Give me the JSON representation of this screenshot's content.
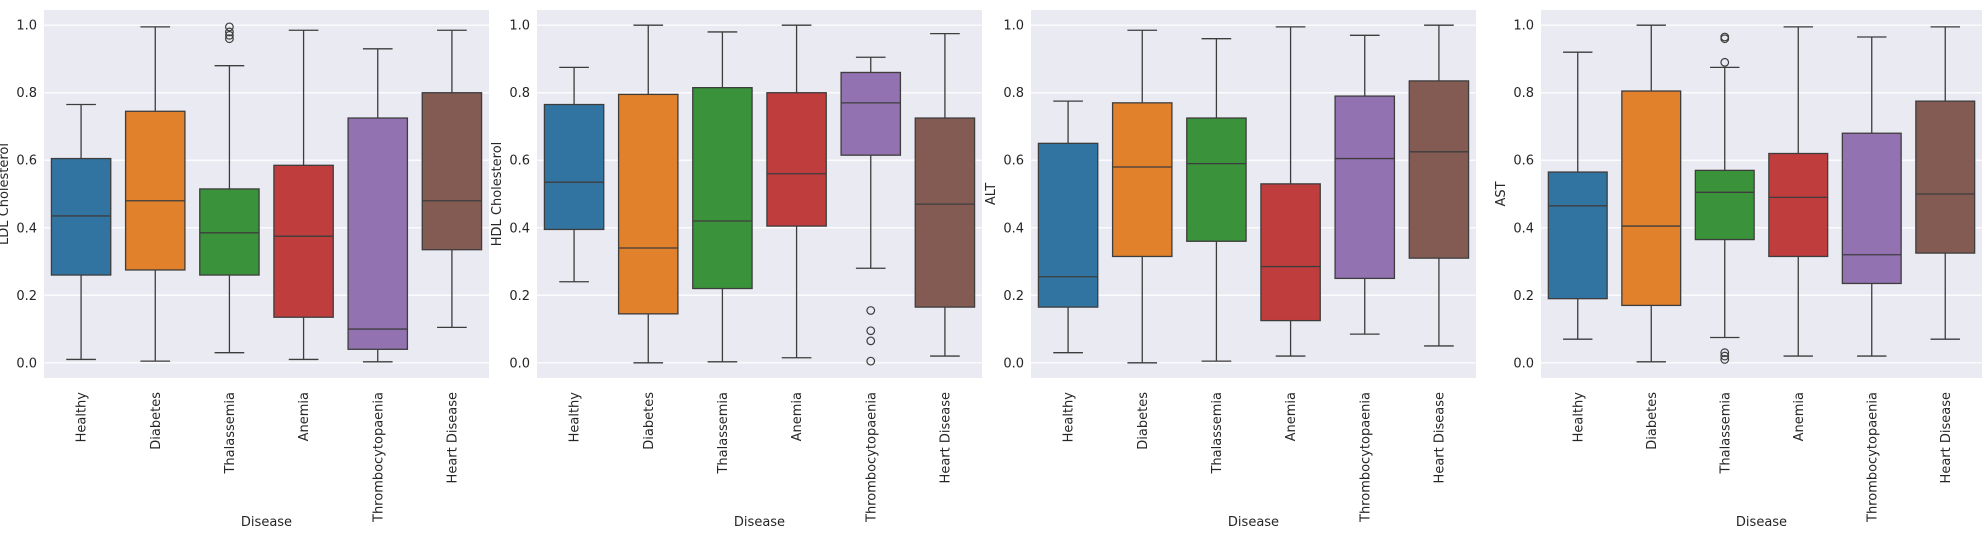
{
  "colors": {
    "plot_background": "#eaeaf2",
    "grid": "#ffffff",
    "outline": "#3d3d3d",
    "text": "#262626"
  },
  "chart_data": [
    {
      "type": "box",
      "xlabel": "Disease",
      "ylabel": "LDL Cholesterol",
      "ylim": [
        -0.045,
        1.045
      ],
      "yticks": [
        0.0,
        0.2,
        0.4,
        0.6,
        0.8,
        1.0
      ],
      "ytick_labels": [
        "0.0",
        "0.2",
        "0.4",
        "0.6",
        "0.8",
        "1.0"
      ],
      "grid": true,
      "categories": [
        "Healthy",
        "Diabetes",
        "Thalassemia",
        "Anemia",
        "Thrombocytopaenia",
        "Heart Disease"
      ],
      "category_colors": [
        "#3274a1",
        "#e1812c",
        "#3a923a",
        "#c03d3e",
        "#9372b2",
        "#845b53"
      ],
      "boxes": [
        {
          "whisker_low": 0.01,
          "q1": 0.26,
          "median": 0.435,
          "q3": 0.605,
          "whisker_high": 0.765,
          "outliers": []
        },
        {
          "whisker_low": 0.005,
          "q1": 0.275,
          "median": 0.48,
          "q3": 0.745,
          "whisker_high": 0.995,
          "outliers": []
        },
        {
          "whisker_low": 0.03,
          "q1": 0.26,
          "median": 0.385,
          "q3": 0.515,
          "whisker_high": 0.88,
          "outliers": [
            0.96,
            0.97,
            0.98,
            0.995
          ]
        },
        {
          "whisker_low": 0.01,
          "q1": 0.135,
          "median": 0.375,
          "q3": 0.585,
          "whisker_high": 0.985,
          "outliers": []
        },
        {
          "whisker_low": 0.003,
          "q1": 0.04,
          "median": 0.1,
          "q3": 0.725,
          "whisker_high": 0.93,
          "outliers": []
        },
        {
          "whisker_low": 0.105,
          "q1": 0.335,
          "median": 0.48,
          "q3": 0.8,
          "whisker_high": 0.985,
          "outliers": []
        }
      ]
    },
    {
      "type": "box",
      "xlabel": "Disease",
      "ylabel": "HDL Cholesterol",
      "ylim": [
        -0.045,
        1.045
      ],
      "yticks": [
        0.0,
        0.2,
        0.4,
        0.6,
        0.8,
        1.0
      ],
      "ytick_labels": [
        "0.0",
        "0.2",
        "0.4",
        "0.6",
        "0.8",
        "1.0"
      ],
      "grid": true,
      "categories": [
        "Healthy",
        "Diabetes",
        "Thalassemia",
        "Anemia",
        "Thrombocytopaenia",
        "Heart Disease"
      ],
      "category_colors": [
        "#3274a1",
        "#e1812c",
        "#3a923a",
        "#c03d3e",
        "#9372b2",
        "#845b53"
      ],
      "boxes": [
        {
          "whisker_low": 0.24,
          "q1": 0.395,
          "median": 0.535,
          "q3": 0.765,
          "whisker_high": 0.875,
          "outliers": []
        },
        {
          "whisker_low": 0.0,
          "q1": 0.145,
          "median": 0.34,
          "q3": 0.795,
          "whisker_high": 1.0,
          "outliers": []
        },
        {
          "whisker_low": 0.003,
          "q1": 0.22,
          "median": 0.42,
          "q3": 0.815,
          "whisker_high": 0.98,
          "outliers": []
        },
        {
          "whisker_low": 0.015,
          "q1": 0.405,
          "median": 0.56,
          "q3": 0.8,
          "whisker_high": 1.0,
          "outliers": []
        },
        {
          "whisker_low": 0.28,
          "q1": 0.615,
          "median": 0.77,
          "q3": 0.86,
          "whisker_high": 0.905,
          "outliers": [
            0.155,
            0.095,
            0.065,
            0.005
          ]
        },
        {
          "whisker_low": 0.02,
          "q1": 0.165,
          "median": 0.47,
          "q3": 0.725,
          "whisker_high": 0.975,
          "outliers": []
        }
      ]
    },
    {
      "type": "box",
      "xlabel": "Disease",
      "ylabel": "ALT",
      "ylim": [
        -0.045,
        1.045
      ],
      "yticks": [
        0.0,
        0.2,
        0.4,
        0.6,
        0.8,
        1.0
      ],
      "ytick_labels": [
        "0.0",
        "0.2",
        "0.4",
        "0.6",
        "0.8",
        "1.0"
      ],
      "grid": true,
      "categories": [
        "Healthy",
        "Diabetes",
        "Thalassemia",
        "Anemia",
        "Thrombocytopaenia",
        "Heart Disease"
      ],
      "category_colors": [
        "#3274a1",
        "#e1812c",
        "#3a923a",
        "#c03d3e",
        "#9372b2",
        "#845b53"
      ],
      "boxes": [
        {
          "whisker_low": 0.03,
          "q1": 0.165,
          "median": 0.255,
          "q3": 0.65,
          "whisker_high": 0.775,
          "outliers": []
        },
        {
          "whisker_low": 0.0,
          "q1": 0.315,
          "median": 0.58,
          "q3": 0.77,
          "whisker_high": 0.985,
          "outliers": []
        },
        {
          "whisker_low": 0.005,
          "q1": 0.36,
          "median": 0.59,
          "q3": 0.725,
          "whisker_high": 0.96,
          "outliers": []
        },
        {
          "whisker_low": 0.02,
          "q1": 0.125,
          "median": 0.285,
          "q3": 0.53,
          "whisker_high": 0.995,
          "outliers": []
        },
        {
          "whisker_low": 0.085,
          "q1": 0.25,
          "median": 0.605,
          "q3": 0.79,
          "whisker_high": 0.97,
          "outliers": []
        },
        {
          "whisker_low": 0.05,
          "q1": 0.31,
          "median": 0.625,
          "q3": 0.835,
          "whisker_high": 1.0,
          "outliers": []
        }
      ]
    },
    {
      "type": "box",
      "xlabel": "Disease",
      "ylabel": "AST",
      "ylim": [
        -0.045,
        1.045
      ],
      "yticks": [
        0.0,
        0.2,
        0.4,
        0.6,
        0.8,
        1.0
      ],
      "ytick_labels": [
        "0.0",
        "0.2",
        "0.4",
        "0.6",
        "0.8",
        "1.0"
      ],
      "grid": true,
      "categories": [
        "Healthy",
        "Diabetes",
        "Thalassemia",
        "Anemia",
        "Thrombocytopaenia",
        "Heart Disease"
      ],
      "category_colors": [
        "#3274a1",
        "#e1812c",
        "#3a923a",
        "#c03d3e",
        "#9372b2",
        "#845b53"
      ],
      "boxes": [
        {
          "whisker_low": 0.07,
          "q1": 0.19,
          "median": 0.465,
          "q3": 0.565,
          "whisker_high": 0.92,
          "outliers": []
        },
        {
          "whisker_low": 0.003,
          "q1": 0.17,
          "median": 0.405,
          "q3": 0.805,
          "whisker_high": 1.0,
          "outliers": []
        },
        {
          "whisker_low": 0.075,
          "q1": 0.365,
          "median": 0.505,
          "q3": 0.57,
          "whisker_high": 0.875,
          "outliers": [
            0.89,
            0.96,
            0.965,
            0.03,
            0.02,
            0.01
          ]
        },
        {
          "whisker_low": 0.02,
          "q1": 0.315,
          "median": 0.49,
          "q3": 0.62,
          "whisker_high": 0.995,
          "outliers": []
        },
        {
          "whisker_low": 0.02,
          "q1": 0.235,
          "median": 0.32,
          "q3": 0.68,
          "whisker_high": 0.965,
          "outliers": []
        },
        {
          "whisker_low": 0.07,
          "q1": 0.325,
          "median": 0.5,
          "q3": 0.775,
          "whisker_high": 0.995,
          "outliers": []
        }
      ]
    }
  ]
}
